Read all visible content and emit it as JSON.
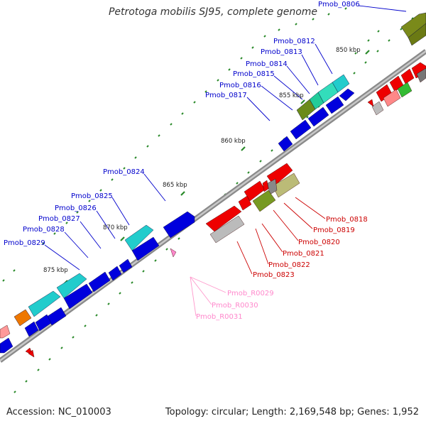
{
  "title": "Petrotoga mobilis SJ95, complete genome",
  "footer": {
    "accession": "Accession: NC_010003",
    "summary": "Topology: circular; Length: 2,169,548 bp; Genes: 1,952"
  },
  "colors": {
    "forward_label": "#0000cc",
    "reverse_label": "#cc0000",
    "rna_label": "#ff88cc",
    "backbone": "#888888",
    "tick": "#228822"
  },
  "ticks": {
    "kbp_850": "850 kbp",
    "kbp_855": "855 kbp",
    "kbp_860": "860 kbp",
    "kbp_865": "865 kbp",
    "kbp_870": "870 kbp",
    "kbp_875": "875 kbp"
  },
  "genes": {
    "pmob_0806": "Pmob_0806",
    "pmob_0812": "Pmob_0812",
    "pmob_0813": "Pmob_0813",
    "pmob_0814": "Pmob_0814",
    "pmob_0815": "Pmob_0815",
    "pmob_0816": "Pmob_0816",
    "pmob_0817": "Pmob_0817",
    "pmob_0824": "Pmob_0824",
    "pmob_0825": "Pmob_0825",
    "pmob_0826": "Pmob_0826",
    "pmob_0827": "Pmob_0827",
    "pmob_0828": "Pmob_0828",
    "pmob_0829": "Pmob_0829",
    "pmob_0818": "Pmob_0818",
    "pmob_0819": "Pmob_0819",
    "pmob_0820": "Pmob_0820",
    "pmob_0821": "Pmob_0821",
    "pmob_0822": "Pmob_0822",
    "pmob_0823": "Pmob_0823",
    "pmob_r0029": "Pmob_R0029",
    "pmob_r0030": "Pmob_R0030",
    "pmob_r0031": "Pmob_R0031"
  }
}
